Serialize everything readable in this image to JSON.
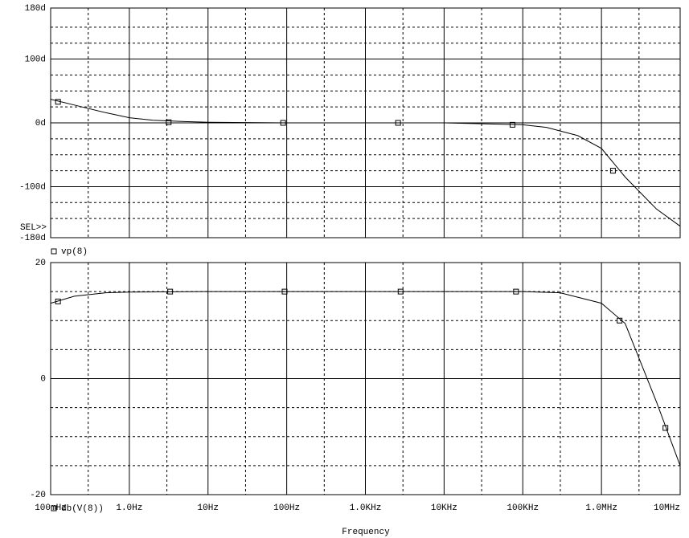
{
  "chart_data": [
    {
      "type": "line",
      "annotation": "SEL>>",
      "xscale": "log",
      "color": "#000000",
      "xlim": [
        0.1,
        10000000
      ],
      "xticks": [
        0.1,
        1,
        10,
        100,
        1000,
        10000,
        100000,
        1000000,
        10000000
      ],
      "minor_xticks": [
        0.3,
        3,
        30,
        300,
        3000,
        30000,
        300000,
        3000000
      ],
      "ylim": [
        -180,
        180
      ],
      "yticks": [
        {
          "value": 180,
          "label": "180d"
        },
        {
          "value": 100,
          "label": "100d"
        },
        {
          "value": 0,
          "label": "0d"
        },
        {
          "value": -100,
          "label": "-100d"
        },
        {
          "value": -180,
          "label": "-180d"
        }
      ],
      "minor_yticks": [
        150,
        125,
        75,
        50,
        25,
        -25,
        -50,
        -75,
        -125,
        -150
      ],
      "x": [
        0.1,
        0.2,
        0.5,
        1,
        2,
        5,
        10,
        100,
        1000,
        10000,
        100000,
        200000,
        500000,
        1000000,
        2000000,
        5000000,
        10000000
      ],
      "series": [
        {
          "name": "vp(8)",
          "color": "#000000",
          "values": [
            37,
            28,
            16,
            8,
            4,
            2,
            1,
            0,
            0,
            0,
            -3,
            -7,
            -20,
            -40,
            -85,
            -135,
            -162
          ],
          "markers": {
            "x": [
              0.124,
              3.16,
              90,
              2600,
              74000,
              1400000
            ],
            "values": [
              33,
              1,
              0,
              0,
              -3,
              -75
            ]
          }
        }
      ]
    },
    {
      "type": "line",
      "x_label": "Frequency",
      "xscale": "log",
      "color": "#000000",
      "xlim": [
        0.1,
        10000000
      ],
      "xticks": [
        {
          "value": 0.1,
          "label": "100mHz"
        },
        {
          "value": 1,
          "label": "1.0Hz"
        },
        {
          "value": 10,
          "label": "10Hz"
        },
        {
          "value": 100,
          "label": "100Hz"
        },
        {
          "value": 1000,
          "label": "1.0KHz"
        },
        {
          "value": 10000,
          "label": "10KHz"
        },
        {
          "value": 100000,
          "label": "100KHz"
        },
        {
          "value": 1000000,
          "label": "1.0MHz"
        },
        {
          "value": 10000000,
          "label": "10MHz"
        }
      ],
      "minor_xticks": [
        0.3,
        3,
        30,
        300,
        3000,
        30000,
        300000,
        3000000
      ],
      "ylim": [
        -20,
        20
      ],
      "yticks": [
        20,
        0,
        -20
      ],
      "minor_yticks": [
        15,
        10,
        5,
        -5,
        -10,
        -15
      ],
      "x": [
        0.1,
        0.2,
        0.5,
        1,
        10,
        100,
        1000,
        10000,
        100000,
        300000,
        1000000,
        2000000,
        5000000,
        10000000
      ],
      "series": [
        {
          "name": "db(V(8))",
          "color": "#000000",
          "values": [
            13,
            14.2,
            14.8,
            14.9,
            15,
            15,
            15,
            15,
            15,
            14.8,
            13,
            9.5,
            -4,
            -15
          ],
          "markers": {
            "x": [
              0.124,
              3.3,
              94,
              2800,
              82000,
              1700000,
              6500000
            ],
            "values": [
              13.3,
              15,
              15,
              15,
              15,
              10,
              -8.5
            ]
          }
        }
      ]
    }
  ]
}
